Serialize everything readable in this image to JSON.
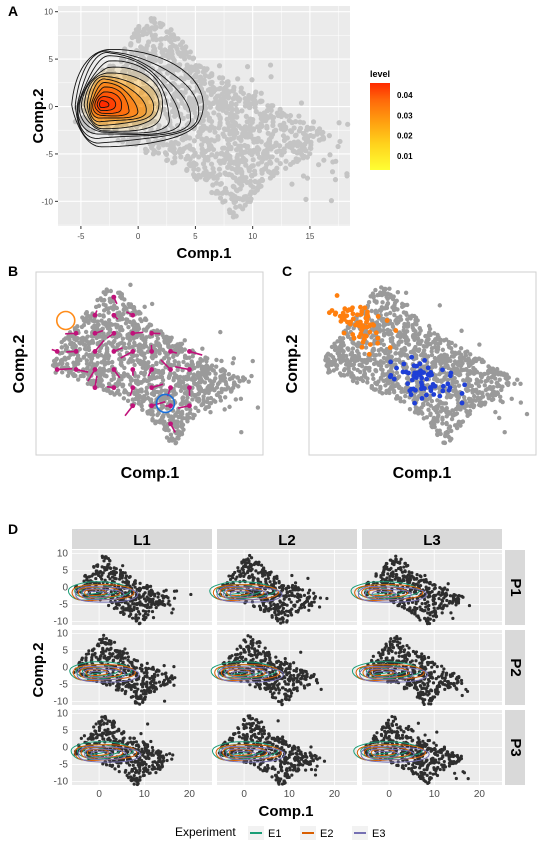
{
  "panels": {
    "A": {
      "label": "A"
    },
    "B": {
      "label": "B"
    },
    "C": {
      "label": "C"
    },
    "D": {
      "label": "D"
    }
  },
  "chart_data": [
    {
      "panel": "A",
      "type": "scatter",
      "subtype": "scatter with 2D density contours",
      "xlabel": "Comp.1",
      "ylabel": "Comp.2",
      "xlim": [
        -7,
        18.5
      ],
      "ylim": [
        -12.6,
        10.6
      ],
      "x_ticks": [
        -5,
        0,
        5,
        10,
        15
      ],
      "y_ticks": [
        -10,
        -5,
        0,
        5,
        10
      ],
      "grid": true,
      "point_color": "#c4c4c4",
      "legend": {
        "title": "level",
        "placement": "right",
        "ticks": [
          0.01,
          0.02,
          0.03,
          0.04
        ],
        "range": [
          0.003,
          0.046
        ],
        "colors": [
          "#ffff33",
          "#ffd21c",
          "#ffa010",
          "#ff6a0a",
          "#ff2a00"
        ]
      },
      "density_peak": {
        "x": -3.2,
        "y": 0.2
      }
    },
    {
      "panel": "B",
      "type": "scatter",
      "subtype": "scatter with arrow glyphs",
      "xlabel": "Comp.1",
      "ylabel": "Comp.2",
      "point_color": "#9a9a9a",
      "glyph_color": "#c0127a",
      "circles": [
        {
          "color": "#ff8c1a",
          "x": -4,
          "y": 4.7
        },
        {
          "color": "#1a6fd9",
          "x": 7.6,
          "y": -6.3
        }
      ]
    },
    {
      "panel": "C",
      "type": "scatter",
      "xlabel": "Comp.1",
      "ylabel": "Comp.2",
      "point_color": "#9a9a9a",
      "highlight_groups": [
        {
          "color": "#ff7f0e",
          "center": [
            -2,
            4.5
          ]
        },
        {
          "color": "#1f3fd6",
          "center": [
            6,
            -3
          ]
        }
      ]
    },
    {
      "panel": "D",
      "type": "scatter",
      "subtype": "faceted scatter with density contours",
      "xlabel": "Comp.1",
      "ylabel": "Comp.2",
      "columns": [
        "L1",
        "L2",
        "L3"
      ],
      "rows": [
        "P1",
        "P2",
        "P3"
      ],
      "x_ticks": [
        0,
        10,
        20
      ],
      "y_ticks": [
        10,
        5,
        0,
        -5,
        -10
      ],
      "point_color": "#2e2e2e",
      "legend": {
        "title": "Experiment",
        "placement": "bottom",
        "entries": [
          {
            "name": "E1",
            "color": "#1b9e77"
          },
          {
            "name": "E2",
            "color": "#d95f02"
          },
          {
            "name": "E3",
            "color": "#7570b3"
          }
        ]
      }
    }
  ]
}
